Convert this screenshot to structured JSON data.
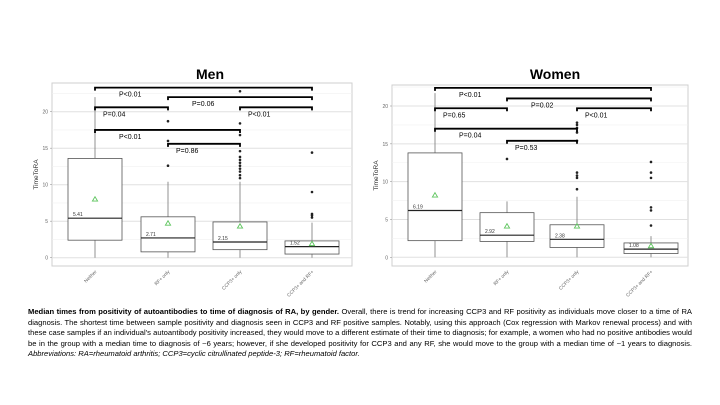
{
  "chart_data": [
    {
      "type": "box",
      "title": "Men",
      "ylabel": "TimeToRA",
      "ylim": [
        -1,
        24.5
      ],
      "yticks": [
        0,
        5,
        10,
        15,
        20
      ],
      "categories": [
        "Neither",
        "RF+ only",
        "CCP3+ only",
        "CCP3+ and RF+"
      ],
      "boxes": [
        {
          "q1": 2.4,
          "median": 5.41,
          "q3": 13.6,
          "low": 0,
          "high": 22.0,
          "mean": 8.0,
          "median_label": "5.41",
          "outliers": []
        },
        {
          "q1": 0.8,
          "median": 2.71,
          "q3": 5.6,
          "low": 0,
          "high": 10.4,
          "mean": 4.7,
          "median_label": "2.71",
          "outliers": [
            12.6,
            16.0,
            18.7
          ]
        },
        {
          "q1": 1.1,
          "median": 2.15,
          "q3": 4.9,
          "low": 0,
          "high": 10.4,
          "mean": 4.3,
          "median_label": "2.15",
          "outliers": [
            10.9,
            11.3,
            11.8,
            12.2,
            12.6,
            13.0,
            13.4,
            13.8,
            14.6,
            16.8,
            18.4,
            22.8
          ]
        },
        {
          "q1": 0.5,
          "median": 1.52,
          "q3": 2.3,
          "low": 0,
          "high": 4.8,
          "mean": 1.9,
          "median_label": "1.52",
          "outliers": [
            5.5,
            5.8,
            6.0,
            9.0,
            14.4
          ]
        }
      ],
      "comparisons": [
        {
          "from": 0,
          "to": 3,
          "y": 23.3,
          "label": "P<0.01"
        },
        {
          "from": 1,
          "to": 3,
          "y": 22.0,
          "label": "P=0.06"
        },
        {
          "from": 0,
          "to": 1,
          "y": 20.6,
          "label": "P=0.04"
        },
        {
          "from": 2,
          "to": 3,
          "y": 20.6,
          "label": "P<0.01"
        },
        {
          "from": 0,
          "to": 2,
          "y": 17.5,
          "label": "P<0.01"
        },
        {
          "from": 1,
          "to": 2,
          "y": 15.6,
          "label": "P=0.86"
        }
      ]
    },
    {
      "type": "box",
      "title": "Women",
      "ylabel": "TimeToRA",
      "ylim": [
        -1,
        24.0
      ],
      "yticks": [
        0,
        5,
        10,
        15,
        20
      ],
      "categories": [
        "Neither",
        "RF+ only",
        "CCP3+ only",
        "CCP3+ and RF+"
      ],
      "boxes": [
        {
          "q1": 2.2,
          "median": 6.19,
          "q3": 13.8,
          "low": 0,
          "high": 21.7,
          "mean": 8.2,
          "median_label": "6.19",
          "outliers": []
        },
        {
          "q1": 2.1,
          "median": 2.92,
          "q3": 5.9,
          "low": 0,
          "high": 7.4,
          "mean": 4.1,
          "median_label": "2.92",
          "outliers": [
            13.0
          ]
        },
        {
          "q1": 1.3,
          "median": 2.38,
          "q3": 4.3,
          "low": 0,
          "high": 8.0,
          "mean": 4.1,
          "median_label": "2.38",
          "outliers": [
            9.0,
            10.5,
            10.8,
            11.2,
            15.4,
            16.5,
            17.1,
            17.5,
            17.8
          ]
        },
        {
          "q1": 0.5,
          "median": 1.08,
          "q3": 1.9,
          "low": 0,
          "high": 2.8,
          "mean": 1.5,
          "median_label": "1.08",
          "outliers": [
            4.2,
            6.2,
            6.6,
            10.5,
            11.2,
            12.6
          ]
        }
      ],
      "comparisons": [
        {
          "from": 0,
          "to": 3,
          "y": 22.4,
          "label": "P<0.01"
        },
        {
          "from": 1,
          "to": 3,
          "y": 21.0,
          "label": "P=0.02"
        },
        {
          "from": 0,
          "to": 1,
          "y": 19.7,
          "label": "P=0.65"
        },
        {
          "from": 2,
          "to": 3,
          "y": 19.7,
          "label": "P<0.01"
        },
        {
          "from": 0,
          "to": 2,
          "y": 17.0,
          "label": "P=0.04"
        },
        {
          "from": 1,
          "to": 2,
          "y": 15.4,
          "label": "P=0.53"
        }
      ]
    }
  ],
  "caption": {
    "bold": "Median times from positivity of autoantibodies to time of diagnosis of RA, by gender.",
    "body": " Overall, there is trend for increasing CCP3 and RF positivity as individuals move closer to a time of RA diagnosis. The shortest time between sample positivity and diagnosis seen in CCP3 and RF positive samples. Notably, using this approach (Cox regression with Markov renewal process) and with these case samples if an individual's autoantibody positivity increased, they would move to a different estimate of their time to diagnosis; for example, a women who had no positive antibodies would be in the group with a median time to diagnosis of ~6 years; however, if she developed positivity for CCP3 and any RF, she would move to the group with a median time of ~1 years to diagnosis. ",
    "italic": "Abbreviations: RA=rheumatoid arthritis; CCP3=cyclic citrullinated peptide-3; RF=rheumatoid factor."
  },
  "colors": {
    "mean_marker": "#5cc45c",
    "grid": "#e4e4e4",
    "box": "#555555"
  }
}
